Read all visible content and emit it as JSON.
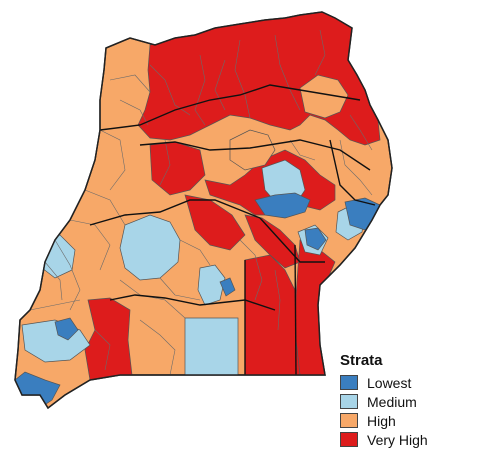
{
  "legend": {
    "title": "Strata",
    "items": [
      {
        "label": "Lowest",
        "color": "#3a7ebf"
      },
      {
        "label": "Medium",
        "color": "#a8d5e8"
      },
      {
        "label": "High",
        "color": "#f7a868"
      },
      {
        "label": "Very High",
        "color": "#dd1c1c"
      }
    ]
  },
  "colors": {
    "border_thin": "#555555",
    "border_thick": "#000000"
  }
}
